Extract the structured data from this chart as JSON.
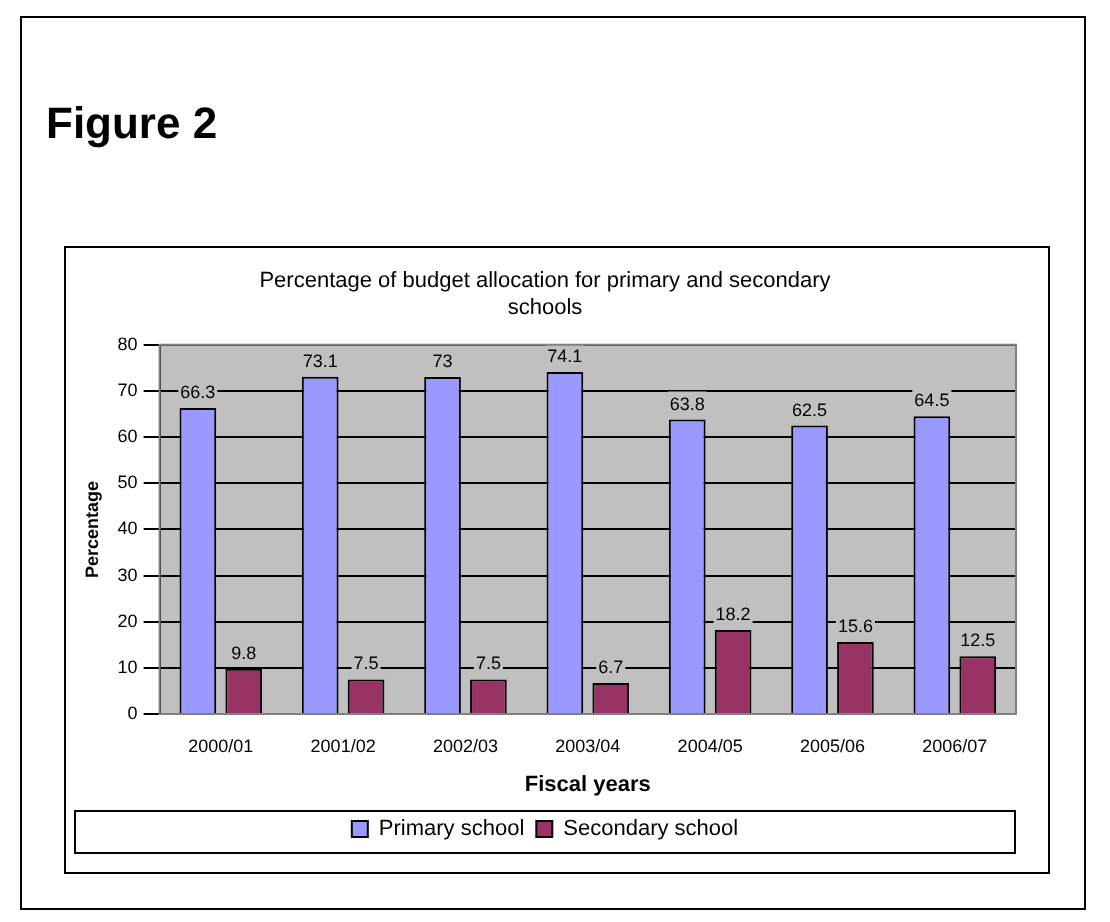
{
  "chart_data": {
    "type": "bar",
    "title": "Percentage of budget allocation for primary and secondary schools",
    "annotations": [
      "Figure 2"
    ],
    "xlabel": "Fiscal years",
    "ylabel": "Percentage",
    "categories": [
      "2000/01",
      "2001/02",
      "2002/03",
      "2003/04",
      "2004/05",
      "2005/06",
      "2006/07"
    ],
    "series": [
      {
        "name": "Primary school",
        "color": "#9999ff",
        "values": [
          66.3,
          73.1,
          73,
          74.1,
          63.8,
          62.5,
          64.5
        ]
      },
      {
        "name": "Secondary school",
        "color": "#993366",
        "values": [
          9.8,
          7.5,
          7.5,
          6.7,
          18.2,
          15.6,
          12.5
        ]
      }
    ],
    "ylim": [
      0,
      80
    ],
    "yticks": [
      0,
      10,
      20,
      30,
      40,
      50,
      60,
      70,
      80
    ],
    "grid": "y",
    "legend": "bottom",
    "data_labels": true
  }
}
